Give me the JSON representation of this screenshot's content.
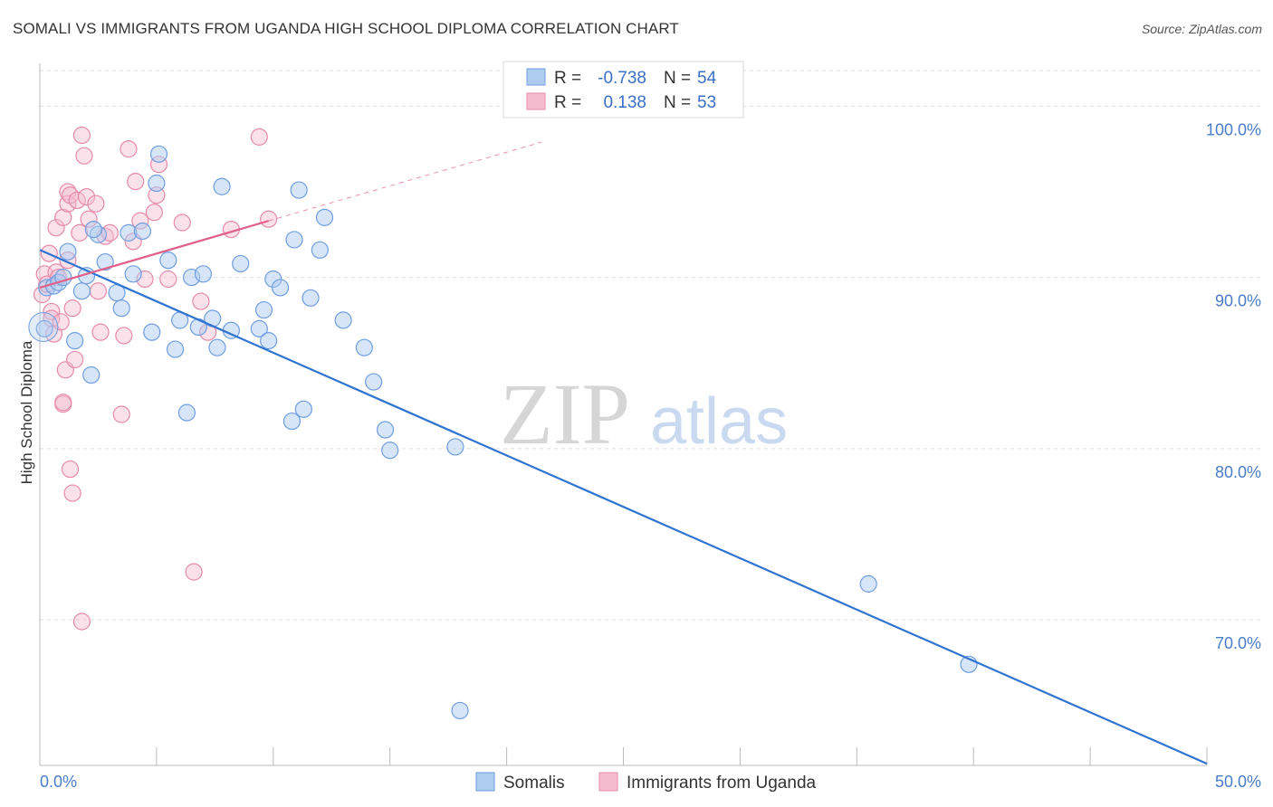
{
  "title": "SOMALI VS IMMIGRANTS FROM UGANDA HIGH SCHOOL DIPLOMA CORRELATION CHART",
  "source": "Source: ZipAtlas.com",
  "watermark": {
    "zip": "ZIP",
    "atlas": "atlas"
  },
  "legend_box": {
    "r_label": "R =",
    "n_label": "N =",
    "rows": [
      {
        "r": "-0.738",
        "n": "54"
      },
      {
        "r": "0.138",
        "n": "53"
      }
    ]
  },
  "bottom_legend": [
    "Somalis",
    "Immigrants from Uganda"
  ],
  "colors": {
    "blue_fill": "#aecbf0",
    "blue_stroke": "#6f9ee0",
    "blue_line": "#2f74d0",
    "pink_fill": "#f5bcd0",
    "pink_stroke": "#e68aaa",
    "pink_line": "#e0608a",
    "grid": "#dddddd",
    "tick_text": "#4a7cc7"
  },
  "chart_data": {
    "type": "scatter",
    "title": "SOMALI VS IMMIGRANTS FROM UGANDA HIGH SCHOOL DIPLOMA CORRELATION CHART",
    "xlabel": "",
    "ylabel": "High School Diploma",
    "xlim": [
      0,
      50
    ],
    "ylim": [
      61.5,
      102.5
    ],
    "x_tick_labels": [
      "0.0%",
      "50.0%"
    ],
    "y_ticks": [
      70,
      80,
      90,
      100
    ],
    "y_tick_labels": [
      "70.0%",
      "80.0%",
      "90.0%",
      "100.0%"
    ],
    "grid": true,
    "legend_position": "top-center",
    "series": [
      {
        "name": "Somalis",
        "color": "#aecbf0",
        "R": -0.738,
        "N": 54,
        "trend": [
          [
            0,
            91.6
          ],
          [
            50,
            61.6
          ]
        ],
        "points": [
          [
            0.2,
            87.0
          ],
          [
            0.3,
            89.4
          ],
          [
            0.6,
            89.5
          ],
          [
            0.8,
            89.7
          ],
          [
            1.0,
            90.0
          ],
          [
            1.2,
            91.5
          ],
          [
            1.5,
            86.3
          ],
          [
            1.8,
            89.2
          ],
          [
            2.0,
            90.1
          ],
          [
            2.2,
            84.3
          ],
          [
            2.5,
            92.5
          ],
          [
            2.3,
            92.8
          ],
          [
            2.8,
            90.9
          ],
          [
            3.3,
            89.1
          ],
          [
            3.5,
            88.2
          ],
          [
            3.8,
            92.6
          ],
          [
            4.0,
            90.2
          ],
          [
            4.4,
            92.7
          ],
          [
            4.8,
            86.8
          ],
          [
            5.0,
            95.5
          ],
          [
            5.1,
            97.2
          ],
          [
            5.5,
            91.0
          ],
          [
            5.8,
            85.8
          ],
          [
            6.0,
            87.5
          ],
          [
            6.3,
            82.1
          ],
          [
            6.5,
            90.0
          ],
          [
            6.8,
            87.1
          ],
          [
            7.0,
            90.2
          ],
          [
            7.4,
            87.6
          ],
          [
            7.6,
            85.9
          ],
          [
            7.8,
            95.3
          ],
          [
            8.2,
            86.9
          ],
          [
            8.6,
            90.8
          ],
          [
            9.4,
            87.0
          ],
          [
            9.6,
            88.1
          ],
          [
            9.8,
            86.3
          ],
          [
            10.0,
            89.9
          ],
          [
            10.3,
            89.4
          ],
          [
            10.8,
            81.6
          ],
          [
            10.9,
            92.2
          ],
          [
            11.1,
            95.1
          ],
          [
            11.3,
            82.3
          ],
          [
            11.6,
            88.8
          ],
          [
            12.0,
            91.6
          ],
          [
            12.2,
            93.5
          ],
          [
            13.0,
            87.5
          ],
          [
            13.9,
            85.9
          ],
          [
            14.3,
            83.9
          ],
          [
            14.8,
            81.1
          ],
          [
            15.0,
            79.9
          ],
          [
            17.8,
            80.1
          ],
          [
            18.0,
            64.7
          ],
          [
            35.5,
            72.1
          ],
          [
            39.8,
            67.4
          ]
        ]
      },
      {
        "name": "Immigrants from Uganda",
        "color": "#f5bcd0",
        "R": 0.138,
        "N": 53,
        "trend_solid": [
          [
            0,
            89.4
          ],
          [
            9.8,
            93.3
          ]
        ],
        "trend_dashed": [
          [
            9.8,
            93.3
          ],
          [
            21.5,
            97.9
          ]
        ],
        "points": [
          [
            0.1,
            89.0
          ],
          [
            0.2,
            90.2
          ],
          [
            0.3,
            89.6
          ],
          [
            0.4,
            91.4
          ],
          [
            0.5,
            88.0
          ],
          [
            0.5,
            87.6
          ],
          [
            0.6,
            86.7
          ],
          [
            0.7,
            90.3
          ],
          [
            0.7,
            92.9
          ],
          [
            0.8,
            90.0
          ],
          [
            0.9,
            87.4
          ],
          [
            1.0,
            93.5
          ],
          [
            1.0,
            82.6
          ],
          [
            1.0,
            82.7
          ],
          [
            1.1,
            84.6
          ],
          [
            1.2,
            95.0
          ],
          [
            1.2,
            94.3
          ],
          [
            1.2,
            91.0
          ],
          [
            1.3,
            78.8
          ],
          [
            1.3,
            94.8
          ],
          [
            1.4,
            88.2
          ],
          [
            1.4,
            77.4
          ],
          [
            1.5,
            85.2
          ],
          [
            1.6,
            94.5
          ],
          [
            1.7,
            92.6
          ],
          [
            1.8,
            69.9
          ],
          [
            1.8,
            98.3
          ],
          [
            1.9,
            97.1
          ],
          [
            2.0,
            94.7
          ],
          [
            2.1,
            93.4
          ],
          [
            2.4,
            94.3
          ],
          [
            2.5,
            89.2
          ],
          [
            2.6,
            86.8
          ],
          [
            2.8,
            92.4
          ],
          [
            3.0,
            92.6
          ],
          [
            3.5,
            82.0
          ],
          [
            3.6,
            86.6
          ],
          [
            3.8,
            97.5
          ],
          [
            4.0,
            92.1
          ],
          [
            4.1,
            95.6
          ],
          [
            4.3,
            93.3
          ],
          [
            4.5,
            89.9
          ],
          [
            4.9,
            93.8
          ],
          [
            5.0,
            94.8
          ],
          [
            5.1,
            96.6
          ],
          [
            5.5,
            89.9
          ],
          [
            6.1,
            93.2
          ],
          [
            6.6,
            72.8
          ],
          [
            6.9,
            88.6
          ],
          [
            7.2,
            86.8
          ],
          [
            8.2,
            92.8
          ],
          [
            9.4,
            98.2
          ],
          [
            9.8,
            93.4
          ]
        ]
      }
    ]
  }
}
